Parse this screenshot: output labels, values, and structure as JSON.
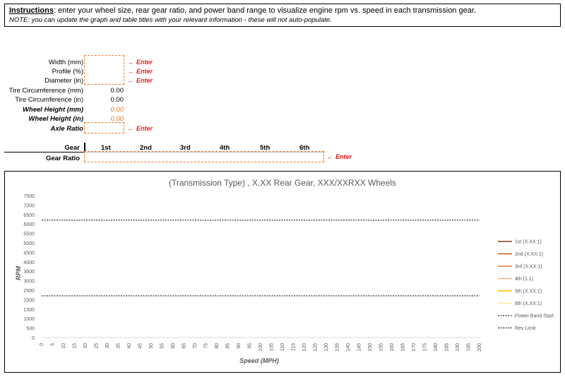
{
  "instructions": {
    "heading": "Instructions",
    "text": ": enter your wheel size, rear gear ratio, and power band range to visualize engine rpm vs. speed in each transmission gear.",
    "note": "NOTE: you can update the graph and table titles with your relevant information - these will not auto-populate."
  },
  "inputs": {
    "width_label": "Width (mm)",
    "profile_label": "Profile (%)",
    "diameter_label": "Diameter (in)",
    "tire_circ_mm_label": "Tire Circumference (mm)",
    "tire_circ_mm_value": "0.00",
    "tire_circ_in_label": "Tire Circumference (in)",
    "tire_circ_in_value": "0.00",
    "wheel_height_mm_label": "Wheel Height (mm)",
    "wheel_height_mm_value": "0.00",
    "wheel_height_in_label": "Wheel Height (in)",
    "wheel_height_in_value": "0.00",
    "axle_ratio_label": "Axle Ratio",
    "enter_label": "Enter",
    "arrow": "←"
  },
  "gears": {
    "gear_label": "Gear",
    "ratio_label": "Gear Ratio",
    "headers": [
      "1st",
      "2nd",
      "3rd",
      "4th",
      "5th",
      "6th"
    ]
  },
  "colors": {
    "accent": "#ed7d31",
    "enter": "#e02020"
  },
  "chart_data": {
    "type": "line",
    "title": "(Transmission Type) , X.XX Rear Gear, XXX/XXRXX Wheels",
    "xlabel": "Speed (MPH)",
    "ylabel": "RPM",
    "xlim": [
      0,
      200
    ],
    "ylim": [
      0,
      7500
    ],
    "xticks": [
      0,
      5,
      10,
      15,
      20,
      25,
      30,
      35,
      40,
      45,
      50,
      55,
      60,
      65,
      70,
      75,
      80,
      85,
      90,
      95,
      100,
      105,
      110,
      115,
      120,
      125,
      130,
      135,
      140,
      145,
      150,
      155,
      160,
      165,
      170,
      175,
      180,
      185,
      190,
      195,
      200
    ],
    "yticks": [
      0,
      500,
      1000,
      1500,
      2000,
      2500,
      3000,
      3500,
      4000,
      4500,
      5000,
      5500,
      6000,
      6500,
      7000,
      7500
    ],
    "grid": false,
    "legend_position": "right",
    "series": [
      {
        "name": "1st (X.XX:1)",
        "color": "#843c0c",
        "style": "solid",
        "values": []
      },
      {
        "name": "2nd (X.XX:1)",
        "color": "#c55a11",
        "style": "solid",
        "values": []
      },
      {
        "name": "3rd (X.XX:1)",
        "color": "#ed7d31",
        "style": "solid",
        "values": []
      },
      {
        "name": "4th (1:1)",
        "color": "#f4b183",
        "style": "solid",
        "values": []
      },
      {
        "name": "5th (X.XX:1)",
        "color": "#ffc000",
        "style": "solid",
        "values": []
      },
      {
        "name": "6th (X.XX:1)",
        "color": "#ffe699",
        "style": "solid",
        "values": []
      },
      {
        "name": "Power Band Start",
        "color": "#000000",
        "style": "dashed",
        "values": [
          2200
        ]
      },
      {
        "name": "Rev Limit",
        "color": "#000000",
        "style": "dashed",
        "values": [
          6200
        ]
      }
    ]
  }
}
